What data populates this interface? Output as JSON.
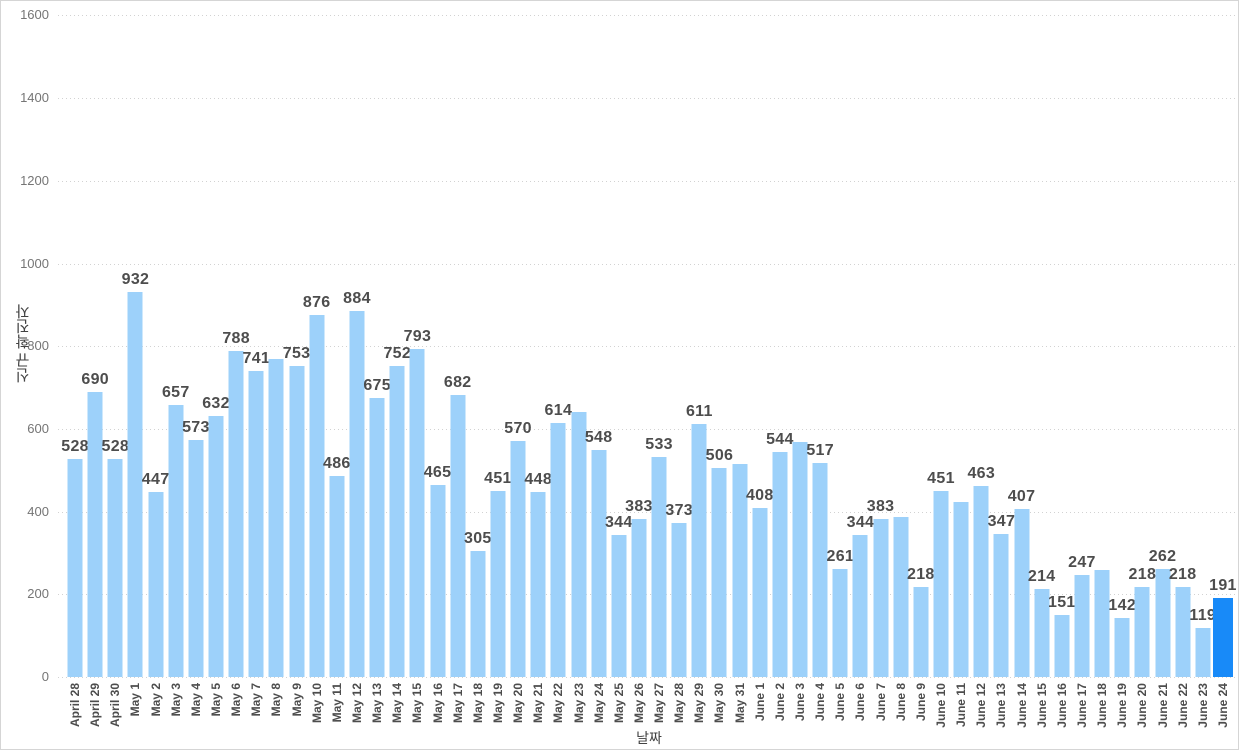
{
  "page": {
    "background": "#ffffff",
    "border_color": "#d5d5d5"
  },
  "chart_data": {
    "type": "bar",
    "title": "",
    "xlabel": "날짜",
    "ylabel": "신규 확진자",
    "ylim": [
      0,
      1600
    ],
    "ytick_step": 200,
    "yticks": [
      0,
      200,
      400,
      600,
      800,
      1000,
      1200,
      1400,
      1600
    ],
    "grid": "horizontal-dotted",
    "legend": "none",
    "bar_color": "#9DD1FA",
    "highlight_bar_color": "#188AF8",
    "highlight_index": 57,
    "highlight_category": "June 24",
    "annotation_color": "#4D4D4D",
    "axis_tick_color": "#757575",
    "categories": [
      "April 28",
      "April 29",
      "April 30",
      "May 1",
      "May 2",
      "May 3",
      "May 4",
      "May 5",
      "May 6",
      "May 7",
      "May 8",
      "May 9",
      "May 10",
      "May 11",
      "May 12",
      "May 13",
      "May 14",
      "May 15",
      "May 16",
      "May 17",
      "May 18",
      "May 19",
      "May 20",
      "May 21",
      "May 22",
      "May 23",
      "May 24",
      "May 25",
      "May 26",
      "May 27",
      "May 28",
      "May 29",
      "May 30",
      "May 31",
      "June 1",
      "June 2",
      "June 3",
      "June 4",
      "June 5",
      "June 6",
      "June 7",
      "June 8",
      "June 9",
      "June 10",
      "June 11",
      "June 12",
      "June 13",
      "June 14",
      "June 15",
      "June 16",
      "June 17",
      "June 18",
      "June 19",
      "June 20",
      "June 21",
      "June 22",
      "June 23",
      "June 24"
    ],
    "values": [
      528,
      690,
      528,
      932,
      447,
      657,
      573,
      632,
      788,
      741,
      769,
      753,
      876,
      486,
      884,
      675,
      752,
      793,
      465,
      682,
      305,
      451,
      570,
      448,
      614,
      642,
      548,
      344,
      383,
      533,
      373,
      611,
      506,
      516,
      408,
      544,
      568,
      517,
      261,
      344,
      383,
      386,
      218,
      451,
      423,
      463,
      347,
      407,
      214,
      151,
      247,
      258,
      142,
      218,
      262,
      218,
      119,
      191
    ],
    "hidden_value_label_indices": [
      10,
      25,
      33,
      36,
      41,
      44,
      51
    ]
  }
}
